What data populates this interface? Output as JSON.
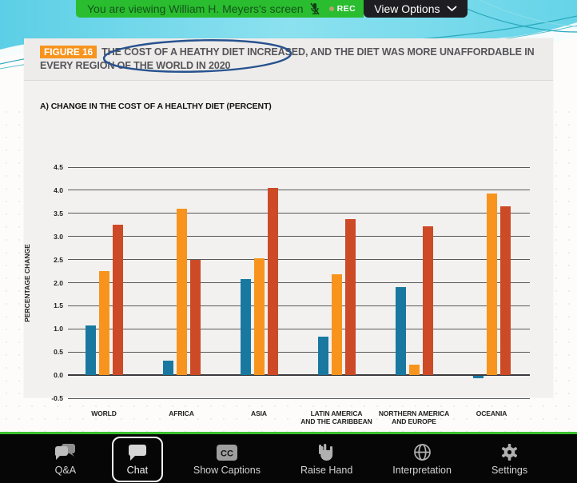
{
  "banner": {
    "text": "You are viewing William H. Meyers's screen",
    "rec_label": "REC",
    "view_options_label": "View Options",
    "colors": {
      "green": "#2abd2f",
      "text": "#14541c",
      "button_bg": "#1e1e22",
      "rec_dot": "#b5a36a"
    }
  },
  "slide": {
    "figure_badge": "FIGURE 16",
    "figure_title": "THE COST OF A HEATHY DIET INCREASED, AND THE DIET WAS MORE UNAFFORDABLE IN EVERY REGION OF THE WORLD IN 2020",
    "annotation": {
      "shape": "ellipse",
      "color": "#27528f",
      "around_text": "COST OF A HEATHY DIET INCREASED"
    },
    "badge_color": "#f7941e"
  },
  "chart_data": {
    "type": "bar",
    "title": "A) CHANGE IN THE COST OF A HEALTHY DIET (PERCENT)",
    "ylabel": "PERCENTAGE CHANGE",
    "ylim": [
      -0.5,
      4.5
    ],
    "ytick_step": 0.5,
    "grid": true,
    "legend": "none",
    "categories": [
      [
        "WORLD"
      ],
      [
        "AFRICA"
      ],
      [
        "ASIA"
      ],
      [
        "LATIN AMERICA",
        "AND THE CARIBBEAN"
      ],
      [
        "NORTHERN AMERICA",
        "AND EUROPE"
      ],
      [
        "OCEANIA"
      ]
    ],
    "series": [
      {
        "name": "series-blue",
        "color": "#1878a0",
        "values": [
          1.08,
          0.32,
          2.07,
          0.83,
          1.9,
          -0.05
        ]
      },
      {
        "name": "series-orange",
        "color": "#f8941d",
        "values": [
          2.25,
          3.6,
          2.53,
          2.18,
          0.22,
          3.93
        ]
      },
      {
        "name": "series-red",
        "color": "#cd4a26",
        "values": [
          3.25,
          2.5,
          4.05,
          3.37,
          3.22,
          3.65
        ]
      }
    ]
  },
  "toolbar": {
    "accent_line_color": "#3ac12e",
    "items": [
      {
        "label": "Q&A",
        "icon": "qa-bubbles-icon",
        "active": false
      },
      {
        "label": "Chat",
        "icon": "chat-bubble-icon",
        "active": true
      },
      {
        "label": "Show Captions",
        "icon": "closed-captions-icon",
        "active": false
      },
      {
        "label": "Raise Hand",
        "icon": "raise-hand-icon",
        "active": false
      },
      {
        "label": "Interpretation",
        "icon": "globe-icon",
        "active": false
      },
      {
        "label": "Settings",
        "icon": "gear-icon",
        "active": false
      }
    ]
  }
}
